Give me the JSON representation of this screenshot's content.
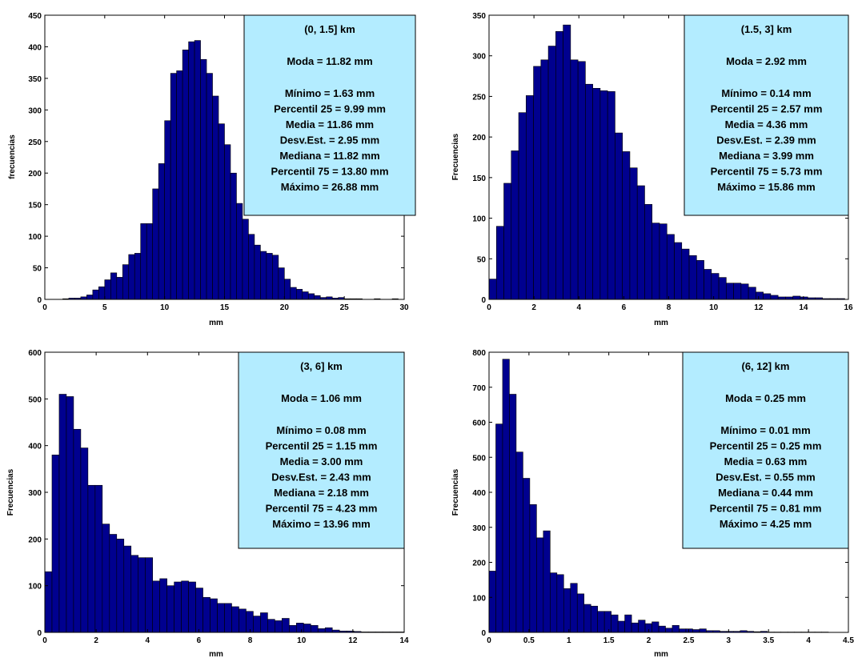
{
  "colors": {
    "bar_fill": "#00008f",
    "bar_edge": "#000000",
    "annotation_box": "#b3ecff",
    "axes": "#000000"
  },
  "chart_data": [
    {
      "type": "bar",
      "annotation": {
        "title": "(0, 1.5] km",
        "mode": "Moda = 11.82 mm",
        "lines": [
          "Mínimo = 1.63 mm",
          "Percentil 25 = 9.99 mm",
          "Media = 11.86 mm",
          "Desv.Est. = 2.95 mm",
          "Mediana = 11.82 mm",
          "Percentil 75 = 13.80 mm",
          "Máximo = 26.88 mm"
        ]
      },
      "xlabel": "mm",
      "ylabel": "frecuencias",
      "xlim": [
        0,
        30
      ],
      "ylim": [
        0,
        450
      ],
      "xticks": [
        0,
        5,
        10,
        15,
        20,
        25,
        30
      ],
      "yticks": [
        0,
        50,
        100,
        150,
        200,
        250,
        300,
        350,
        400,
        450
      ],
      "bin_start": 1.5,
      "bin_width": 0.5,
      "values": [
        1,
        2,
        2,
        4,
        7,
        15,
        20,
        31,
        42,
        35,
        55,
        71,
        73,
        120,
        120,
        175,
        215,
        283,
        358,
        362,
        395,
        408,
        410,
        380,
        358,
        322,
        278,
        245,
        200,
        152,
        127,
        103,
        86,
        76,
        73,
        70,
        50,
        32,
        19,
        16,
        12,
        9,
        6,
        3,
        4,
        2,
        3,
        1,
        1,
        1,
        0,
        0,
        1,
        0,
        0,
        1,
        0,
        0,
        0,
        0,
        1
      ]
    },
    {
      "type": "bar",
      "annotation": {
        "title": "(1.5, 3] km",
        "mode": "Moda = 2.92 mm",
        "lines": [
          "Mínimo = 0.14 mm",
          "Percentil 25 = 2.57 mm",
          "Media = 4.36 mm",
          "Desv.Est. = 2.39 mm",
          "Mediana = 3.99 mm",
          "Percentil 75 = 5.73 mm",
          "Máximo = 15.86 mm"
        ]
      },
      "xlabel": "mm",
      "ylabel": "Frecuencias",
      "xlim": [
        0,
        16
      ],
      "ylim": [
        0,
        350
      ],
      "xticks": [
        0,
        2,
        4,
        6,
        8,
        10,
        12,
        14,
        16
      ],
      "yticks": [
        0,
        50,
        100,
        150,
        200,
        250,
        300,
        350
      ],
      "bin_start": 0,
      "bin_width": 0.33,
      "values": [
        25,
        90,
        143,
        183,
        230,
        251,
        287,
        295,
        312,
        330,
        338,
        295,
        293,
        265,
        260,
        257,
        256,
        205,
        182,
        162,
        140,
        117,
        94,
        93,
        80,
        70,
        62,
        54,
        48,
        37,
        32,
        27,
        20,
        20,
        19,
        15,
        9,
        7,
        5,
        3,
        3,
        4,
        3,
        2,
        2,
        1,
        1,
        1
      ]
    },
    {
      "type": "bar",
      "annotation": {
        "title": "(3, 6] km",
        "mode": "Moda = 1.06 mm",
        "lines": [
          "Mínimo = 0.08 mm",
          "Percentil 25 = 1.15 mm",
          "Media = 3.00 mm",
          "Desv.Est. = 2.43 mm",
          "Mediana = 2.18 mm",
          "Percentil 75 = 4.23 mm",
          "Máximo = 13.96 mm"
        ]
      },
      "xlabel": "mm",
      "ylabel": "Frecuencias",
      "xlim": [
        0,
        14
      ],
      "ylim": [
        0,
        600
      ],
      "xticks": [
        0,
        2,
        4,
        6,
        8,
        10,
        12,
        14
      ],
      "yticks": [
        0,
        100,
        200,
        300,
        400,
        500,
        600
      ],
      "bin_start": 0,
      "bin_width": 0.28,
      "values": [
        130,
        380,
        510,
        505,
        435,
        395,
        315,
        315,
        232,
        210,
        200,
        185,
        165,
        160,
        160,
        110,
        115,
        100,
        108,
        110,
        108,
        95,
        75,
        72,
        62,
        62,
        55,
        50,
        45,
        35,
        42,
        28,
        25,
        30,
        15,
        20,
        18,
        15,
        8,
        10,
        5,
        3,
        3,
        2,
        1,
        1,
        1,
        1,
        1,
        1
      ]
    },
    {
      "type": "bar",
      "annotation": {
        "title": "(6, 12] km",
        "mode": "Moda = 0.25 mm",
        "lines": [
          "Mínimo = 0.01 mm",
          "Percentil 25 = 0.25 mm",
          "Media = 0.63 mm",
          "Desv.Est. = 0.55 mm",
          "Mediana = 0.44 mm",
          "Percentil 75 = 0.81 mm",
          "Máximo = 4.25 mm"
        ]
      },
      "xlabel": "mm",
      "ylabel": "Frecuencias",
      "xlim": [
        0,
        4.5
      ],
      "ylim": [
        0,
        800
      ],
      "xticks": [
        0,
        0.5,
        1,
        1.5,
        2,
        2.5,
        3,
        3.5,
        4,
        4.5
      ],
      "yticks": [
        0,
        100,
        200,
        300,
        400,
        500,
        600,
        700,
        800
      ],
      "bin_start": 0,
      "bin_width": 0.085,
      "values": [
        175,
        595,
        780,
        680,
        515,
        440,
        365,
        270,
        290,
        170,
        165,
        125,
        140,
        110,
        80,
        75,
        60,
        60,
        50,
        32,
        50,
        27,
        35,
        25,
        30,
        18,
        12,
        20,
        10,
        10,
        8,
        10,
        5,
        5,
        3,
        3,
        3,
        5,
        3,
        2,
        3,
        1,
        1,
        1,
        1,
        1,
        1,
        1,
        1,
        1
      ]
    }
  ]
}
